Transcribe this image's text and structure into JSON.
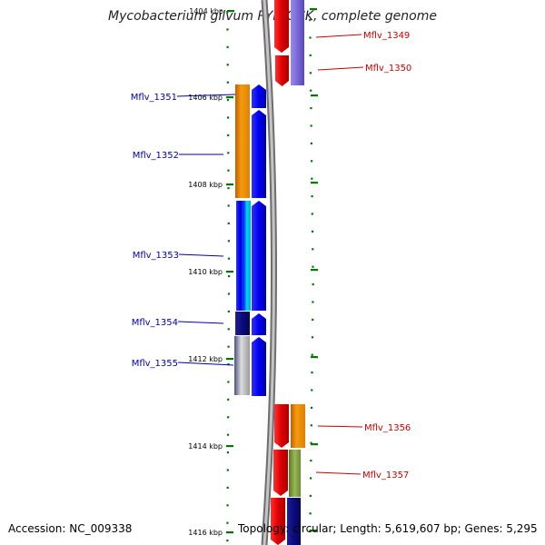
{
  "title": "Mycobacterium gilvum PYR-GCK, complete genome",
  "footer": {
    "accession": "Accession: NC_009338",
    "topology": "Topology: circular;",
    "length": "Length: 5,619,607 bp;",
    "genes": "Genes: 5,295"
  },
  "ticks": {
    "labels": [
      "1404 kbp",
      "1406 kbp",
      "1408 kbp",
      "1410 kbp",
      "1412 kbp",
      "1414 kbp",
      "1416 kbp"
    ]
  },
  "genes": [
    {
      "name": "Mflv_1349",
      "strand": "reverse",
      "color": "#dd0000"
    },
    {
      "name": "Mflv_1350",
      "strand": "reverse",
      "color": "#7b68d8"
    },
    {
      "name": "Mflv_1351",
      "strand": "forward",
      "color": "#f08c00"
    },
    {
      "name": "Mflv_1352",
      "strand": "forward",
      "color": "#0000ee"
    },
    {
      "name": "Mflv_1353",
      "strand": "forward",
      "color": "#00c8e8"
    },
    {
      "name": "Mflv_1354",
      "strand": "forward",
      "color": "#0a0a80"
    },
    {
      "name": "Mflv_1355",
      "strand": "forward",
      "color": "#aaaaaa"
    },
    {
      "name": "Mflv_1356",
      "strand": "reverse",
      "color": "#f08c00"
    },
    {
      "name": "Mflv_1357",
      "strand": "reverse",
      "color": "#7a9a3a"
    }
  ],
  "colors": {
    "backbone": "#8a8a8a",
    "tick": "#007700",
    "forward_label": "#0000aa",
    "reverse_label": "#cc0000",
    "orf_blue": "#0000ee",
    "orf_red": "#dd0000"
  }
}
